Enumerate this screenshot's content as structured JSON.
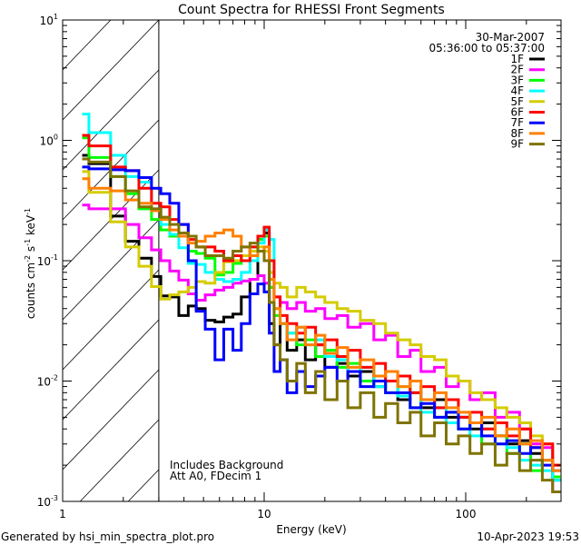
{
  "chart_data": {
    "type": "line",
    "step": true,
    "title": "Count Spectra for RHESSI Front Segments",
    "xlabel": "Energy (keV)",
    "ylabel": {
      "base": "counts cm",
      "e1": "-2",
      "mid1": " s",
      "e2": "-1",
      "mid2": " keV",
      "e3": "-1"
    },
    "xscale": "log",
    "yscale": "log",
    "xlim": [
      1,
      295
    ],
    "ylim": [
      0.001,
      10
    ],
    "x_tick_labels": [
      "1",
      "10",
      "100"
    ],
    "y_tick_labels": [
      {
        "base": "10",
        "exp": "1"
      },
      {
        "base": "10",
        "exp": "0"
      },
      {
        "base": "10",
        "exp": "-1"
      },
      {
        "base": "10",
        "exp": "-2"
      },
      {
        "base": "10",
        "exp": "-3"
      }
    ],
    "shaded_region_keV": [
      1,
      3
    ],
    "legend_placement": "top-right",
    "date": "30-Mar-2007",
    "time_range": "05:36:00 to 05:37:00",
    "annotations": [
      "Includes Background",
      "Att A0, FDecim 1"
    ],
    "energy_bins_keV": [
      1.25,
      1.35,
      1.73,
      2.05,
      2.39,
      2.76,
      3.07,
      3.4,
      3.77,
      4.2,
      4.6,
      5.1,
      5.7,
      6.3,
      7,
      7.7,
      8.5,
      9.3,
      10,
      10.6,
      11.2,
      12,
      13,
      14.5,
      16,
      18,
      20,
      23,
      26,
      30,
      35,
      40,
      46,
      53,
      60,
      70,
      80,
      92,
      105,
      120,
      140,
      160,
      185,
      210,
      240,
      270
    ],
    "energy_max_keV": 295,
    "series": [
      {
        "name": "1F",
        "color": "#000000",
        "values": [
          0.75,
          0.64,
          0.235,
          0.145,
          0.105,
          0.074,
          0.051,
          0.05,
          0.035,
          0.042,
          0.04,
          0.032,
          0.031,
          0.034,
          0.036,
          0.05,
          0.07,
          0.15,
          0.17,
          0.03,
          0.02,
          0.03,
          0.018,
          0.022,
          0.015,
          0.02,
          0.013,
          0.014,
          0.011,
          0.012,
          0.009,
          0.01,
          0.007,
          0.008,
          0.006,
          0.007,
          0.005,
          0.005,
          0.004,
          0.0045,
          0.0035,
          0.003,
          0.0032,
          0.0025,
          0.0022,
          0.0015
        ]
      },
      {
        "name": "2F",
        "color": "#ff00ff",
        "values": [
          0.29,
          0.27,
          0.27,
          0.2,
          0.155,
          0.123,
          0.1,
          0.082,
          0.069,
          0.053,
          0.047,
          0.052,
          0.057,
          0.06,
          0.065,
          0.068,
          0.07,
          0.075,
          0.065,
          0.06,
          0.05,
          0.045,
          0.04,
          0.045,
          0.038,
          0.04,
          0.033,
          0.035,
          0.028,
          0.03,
          0.022,
          0.024,
          0.016,
          0.018,
          0.012,
          0.013,
          0.009,
          0.01,
          0.007,
          0.008,
          0.005,
          0.0055,
          0.004,
          0.003,
          0.0028,
          0.0012
        ]
      },
      {
        "name": "3F",
        "color": "#00ff00",
        "values": [
          1.05,
          0.72,
          0.5,
          0.36,
          0.27,
          0.22,
          0.18,
          0.16,
          0.16,
          0.12,
          0.115,
          0.105,
          0.076,
          0.08,
          0.095,
          0.11,
          0.13,
          0.15,
          0.16,
          0.06,
          0.035,
          0.03,
          0.025,
          0.02,
          0.022,
          0.016,
          0.018,
          0.013,
          0.014,
          0.01,
          0.011,
          0.008,
          0.009,
          0.006,
          0.007,
          0.005,
          0.0055,
          0.004,
          0.0045,
          0.003,
          0.0035,
          0.0025,
          0.003,
          0.0018,
          0.0022,
          0.0016
        ]
      },
      {
        "name": "4F",
        "color": "#00ffff",
        "values": [
          1.65,
          1.16,
          0.75,
          0.5,
          0.45,
          0.27,
          0.2,
          0.165,
          0.128,
          0.095,
          0.093,
          0.08,
          0.07,
          0.067,
          0.07,
          0.08,
          0.1,
          0.14,
          0.18,
          0.15,
          0.04,
          0.03,
          0.025,
          0.028,
          0.02,
          0.022,
          0.016,
          0.015,
          0.012,
          0.013,
          0.009,
          0.01,
          0.0075,
          0.008,
          0.0055,
          0.006,
          0.0045,
          0.005,
          0.0035,
          0.004,
          0.003,
          0.0028,
          0.0022,
          0.002,
          0.0018,
          0.0015
        ]
      },
      {
        "name": "5F",
        "color": "#d4cc00",
        "values": [
          0.55,
          0.37,
          0.21,
          0.13,
          0.09,
          0.061,
          0.048,
          0.052,
          0.055,
          0.06,
          0.067,
          0.065,
          0.08,
          0.098,
          0.1,
          0.11,
          0.12,
          0.13,
          0.12,
          0.08,
          0.065,
          0.06,
          0.05,
          0.06,
          0.055,
          0.05,
          0.045,
          0.04,
          0.038,
          0.032,
          0.03,
          0.025,
          0.022,
          0.02,
          0.016,
          0.015,
          0.011,
          0.01,
          0.008,
          0.007,
          0.006,
          0.005,
          0.0045,
          0.0035,
          0.003,
          0.002
        ]
      },
      {
        "name": "6F",
        "color": "#ff0000",
        "values": [
          1.1,
          0.9,
          0.6,
          0.56,
          0.4,
          0.3,
          0.28,
          0.22,
          0.2,
          0.15,
          0.13,
          0.13,
          0.12,
          0.1,
          0.11,
          0.1,
          0.13,
          0.16,
          0.19,
          0.1,
          0.05,
          0.035,
          0.03,
          0.025,
          0.028,
          0.02,
          0.022,
          0.016,
          0.018,
          0.013,
          0.014,
          0.01,
          0.011,
          0.008,
          0.009,
          0.006,
          0.007,
          0.005,
          0.0055,
          0.004,
          0.0045,
          0.0035,
          0.004,
          0.0028,
          0.003,
          0.002
        ]
      },
      {
        "name": "7F",
        "color": "#0000ff",
        "values": [
          0.6,
          0.58,
          0.57,
          0.56,
          0.49,
          0.4,
          0.36,
          0.3,
          0.2,
          0.1,
          0.038,
          0.027,
          0.015,
          0.027,
          0.018,
          0.03,
          0.053,
          0.064,
          0.055,
          0.025,
          0.012,
          0.015,
          0.008,
          0.012,
          0.009,
          0.011,
          0.013,
          0.01,
          0.012,
          0.009,
          0.01,
          0.008,
          0.008,
          0.006,
          0.0065,
          0.005,
          0.0055,
          0.004,
          0.0045,
          0.0035,
          0.003,
          0.0032,
          0.0025,
          0.0028,
          0.002,
          0.0018
        ]
      },
      {
        "name": "8F",
        "color": "#ff8000",
        "values": [
          0.48,
          0.4,
          0.38,
          0.32,
          0.3,
          0.26,
          0.22,
          0.18,
          0.16,
          0.14,
          0.145,
          0.16,
          0.17,
          0.18,
          0.16,
          0.13,
          0.11,
          0.12,
          0.13,
          0.07,
          0.04,
          0.03,
          0.022,
          0.028,
          0.02,
          0.024,
          0.017,
          0.019,
          0.013,
          0.015,
          0.011,
          0.012,
          0.009,
          0.01,
          0.007,
          0.008,
          0.006,
          0.0055,
          0.0045,
          0.005,
          0.0035,
          0.004,
          0.003,
          0.0032,
          0.0022,
          0.0018
        ]
      },
      {
        "name": "9F",
        "color": "#7f7300",
        "values": [
          0.7,
          0.66,
          0.5,
          0.38,
          0.28,
          0.27,
          0.23,
          0.2,
          0.17,
          0.16,
          0.13,
          0.11,
          0.11,
          0.105,
          0.12,
          0.13,
          0.14,
          0.12,
          0.1,
          0.045,
          0.02,
          0.015,
          0.01,
          0.014,
          0.008,
          0.012,
          0.007,
          0.01,
          0.006,
          0.008,
          0.005,
          0.0065,
          0.0045,
          0.0055,
          0.0035,
          0.0045,
          0.003,
          0.0035,
          0.0025,
          0.003,
          0.002,
          0.0025,
          0.0018,
          0.0022,
          0.0015,
          0.0012
        ]
      }
    ]
  },
  "footer": {
    "generated_by": "Generated by hsi_min_spectra_plot.pro",
    "timestamp": "10-Apr-2023 19:53"
  }
}
